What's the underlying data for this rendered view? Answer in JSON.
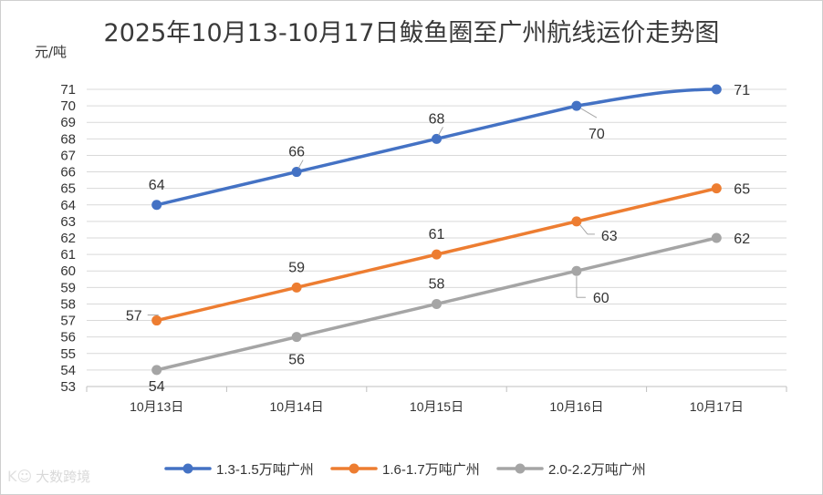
{
  "chart_data": {
    "type": "line",
    "title": "2025年10月13-10月17日鲅鱼圈至广州航线运价走势图",
    "ylabel": "元/吨",
    "xlabel": "",
    "categories": [
      "10月13日",
      "10月14日",
      "10月15日",
      "10月16日",
      "10月17日"
    ],
    "ylim": [
      53,
      71
    ],
    "yticks": [
      53,
      54,
      55,
      56,
      57,
      58,
      59,
      60,
      61,
      62,
      63,
      64,
      65,
      66,
      67,
      68,
      69,
      70,
      71
    ],
    "grid": true,
    "legend_position": "bottom",
    "series": [
      {
        "name": "1.3-1.5万吨广州",
        "color": "#4472c4",
        "values": [
          64,
          66,
          68,
          70,
          71
        ],
        "label_pos": [
          "above",
          "above",
          "above",
          "below",
          "right"
        ]
      },
      {
        "name": "1.6-1.7万吨广州",
        "color": "#ed7d31",
        "values": [
          57,
          59,
          61,
          63,
          65
        ],
        "label_pos": [
          "left",
          "above",
          "above",
          "right",
          "right"
        ]
      },
      {
        "name": "2.0-2.2万吨广州",
        "color": "#a5a5a5",
        "values": [
          54,
          56,
          58,
          60,
          62
        ],
        "label_pos": [
          "below",
          "below",
          "above",
          "right",
          "right"
        ]
      }
    ]
  },
  "watermark": {
    "logo": "K☺",
    "text": "大数跨境"
  }
}
